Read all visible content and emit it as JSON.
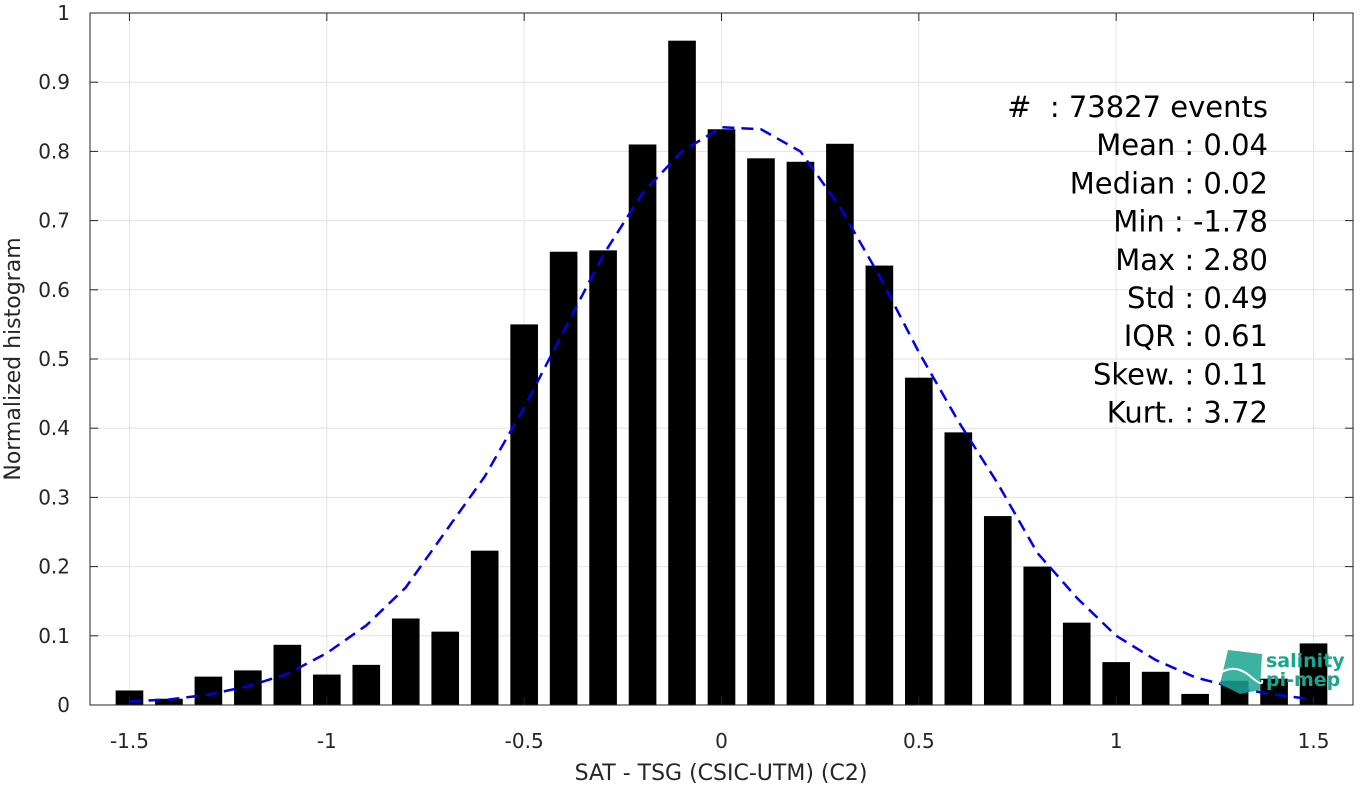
{
  "chart_data": {
    "type": "bar",
    "xlabel": "SAT - TSG (CSIC-UTM) (C2)",
    "ylabel": "Normalized histogram",
    "xlim": [
      -1.6,
      1.6
    ],
    "ylim": [
      0,
      1
    ],
    "grid": true,
    "xticks": [
      -1.5,
      -1,
      -0.5,
      0,
      0.5,
      1,
      1.5
    ],
    "xtick_labels": [
      "-1.5",
      "-1",
      "-0.5",
      "0",
      "0.5",
      "1",
      "1.5"
    ],
    "yticks": [
      0,
      0.1,
      0.2,
      0.3,
      0.4,
      0.5,
      0.6,
      0.7,
      0.8,
      0.9,
      1
    ],
    "ytick_labels": [
      "0",
      "0.1",
      "0.2",
      "0.3",
      "0.4",
      "0.5",
      "0.6",
      "0.7",
      "0.8",
      "0.9",
      "1"
    ],
    "bar_color": "#000000",
    "bar_width": 0.07,
    "x": [
      -1.5,
      -1.4,
      -1.3,
      -1.2,
      -1.1,
      -1.0,
      -0.9,
      -0.8,
      -0.7,
      -0.6,
      -0.5,
      -0.4,
      -0.3,
      -0.2,
      -0.1,
      0.0,
      0.1,
      0.2,
      0.3,
      0.4,
      0.5,
      0.6,
      0.7,
      0.8,
      0.9,
      1.0,
      1.1,
      1.2,
      1.3,
      1.4,
      1.5
    ],
    "values": [
      0.021,
      0.009,
      0.041,
      0.05,
      0.087,
      0.044,
      0.058,
      0.125,
      0.106,
      0.223,
      0.55,
      0.655,
      0.657,
      0.81,
      0.96,
      0.832,
      0.79,
      0.785,
      0.811,
      0.635,
      0.473,
      0.394,
      0.273,
      0.2,
      0.119,
      0.062,
      0.048,
      0.016,
      0.035,
      0.038,
      0.089
    ],
    "fit_curve": {
      "color": "#0000e6",
      "style": "dashed",
      "x": [
        -1.5,
        -1.4,
        -1.3,
        -1.2,
        -1.1,
        -1.0,
        -0.9,
        -0.8,
        -0.7,
        -0.6,
        -0.5,
        -0.4,
        -0.3,
        -0.2,
        -0.1,
        0.0,
        0.1,
        0.2,
        0.3,
        0.4,
        0.5,
        0.6,
        0.7,
        0.8,
        0.9,
        1.0,
        1.1,
        1.2,
        1.3,
        1.4,
        1.5
      ],
      "y": [
        0.005,
        0.008,
        0.015,
        0.027,
        0.045,
        0.075,
        0.115,
        0.17,
        0.25,
        0.33,
        0.43,
        0.54,
        0.65,
        0.74,
        0.8,
        0.835,
        0.832,
        0.8,
        0.72,
        0.62,
        0.51,
        0.41,
        0.32,
        0.22,
        0.155,
        0.1,
        0.065,
        0.04,
        0.025,
        0.015,
        0.008
      ]
    },
    "stats": [
      "#  : 73827 events",
      "Mean : 0.04",
      "Median : 0.02",
      "Min : -1.78",
      "Max : 2.80",
      "Std : 0.49",
      "IQR : 0.61",
      "Skew. : 0.11",
      "Kurt. : 3.72"
    ]
  },
  "logo": {
    "line1": "salinity",
    "line2": "pi-mep",
    "color": "#1aa58f"
  }
}
